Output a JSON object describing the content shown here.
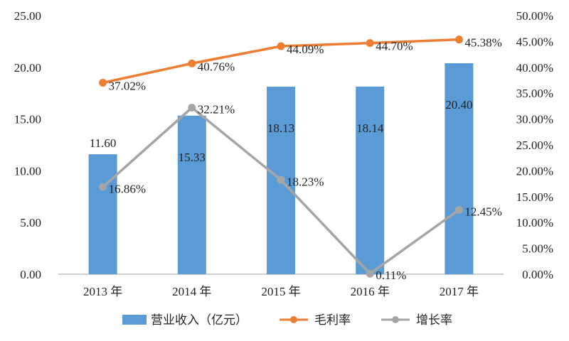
{
  "chart_data": {
    "type": "bar",
    "categories": [
      "2013 年",
      "2014 年",
      "2015 年",
      "2016 年",
      "2017 年"
    ],
    "bars": {
      "name": "营业收入（亿元）",
      "values": [
        11.6,
        15.33,
        18.13,
        18.14,
        20.4
      ],
      "labels": [
        "11.60",
        "15.33",
        "18.13",
        "18.14",
        "20.40"
      ],
      "color": "#5b9bd5",
      "axis": "left"
    },
    "lines": [
      {
        "name": "毛利率",
        "values": [
          37.02,
          40.76,
          44.09,
          44.7,
          45.38
        ],
        "labels": [
          "37.02%",
          "40.76%",
          "44.09%",
          "44.70%",
          "45.38%"
        ],
        "color": "#ed7d31",
        "axis": "right"
      },
      {
        "name": "增长率",
        "values": [
          16.86,
          32.21,
          18.23,
          0.11,
          12.45
        ],
        "labels": [
          "16.86%",
          "32.21%",
          "18.23%",
          "0.11%",
          "12.45%"
        ],
        "color": "#a5a5a5",
        "axis": "right"
      }
    ],
    "y_left": {
      "min": 0,
      "max": 25,
      "ticks": [
        "0.00",
        "5.00",
        "10.00",
        "15.00",
        "20.00",
        "25.00"
      ]
    },
    "y_right": {
      "min": 0,
      "max": 50,
      "ticks": [
        "0.00%",
        "5.00%",
        "10.00%",
        "15.00%",
        "20.00%",
        "25.00%",
        "30.00%",
        "35.00%",
        "40.00%",
        "45.00%",
        "50.00%"
      ]
    },
    "grid": false,
    "legend_position": "bottom"
  }
}
